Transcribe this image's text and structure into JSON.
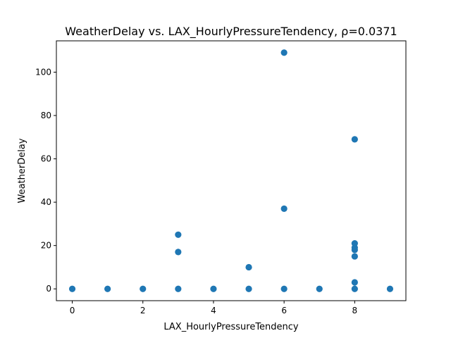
{
  "chart_data": {
    "type": "scatter",
    "title": "WeatherDelay vs. LAX_HourlyPressureTendency, ρ=0.0371",
    "xlabel": "LAX_HourlyPressureTendency",
    "ylabel": "WeatherDelay",
    "xlim": [
      -0.45,
      9.45
    ],
    "ylim": [
      -5.45,
      114.45
    ],
    "xticks": [
      0,
      2,
      4,
      6,
      8
    ],
    "yticks": [
      0,
      20,
      40,
      60,
      80,
      100
    ],
    "grid": false,
    "marker_color": "#1f77b4",
    "points": [
      {
        "x": 0,
        "y": 0
      },
      {
        "x": 1,
        "y": 0
      },
      {
        "x": 2,
        "y": 0
      },
      {
        "x": 3,
        "y": 0
      },
      {
        "x": 3,
        "y": 17
      },
      {
        "x": 3,
        "y": 25
      },
      {
        "x": 4,
        "y": 0
      },
      {
        "x": 5,
        "y": 0
      },
      {
        "x": 5,
        "y": 10
      },
      {
        "x": 6,
        "y": 0
      },
      {
        "x": 6,
        "y": 37
      },
      {
        "x": 6,
        "y": 109
      },
      {
        "x": 7,
        "y": 0
      },
      {
        "x": 8,
        "y": 0
      },
      {
        "x": 8,
        "y": 3
      },
      {
        "x": 8,
        "y": 15
      },
      {
        "x": 8,
        "y": 18
      },
      {
        "x": 8,
        "y": 19
      },
      {
        "x": 8,
        "y": 21
      },
      {
        "x": 8,
        "y": 69
      },
      {
        "x": 9,
        "y": 0
      }
    ]
  }
}
